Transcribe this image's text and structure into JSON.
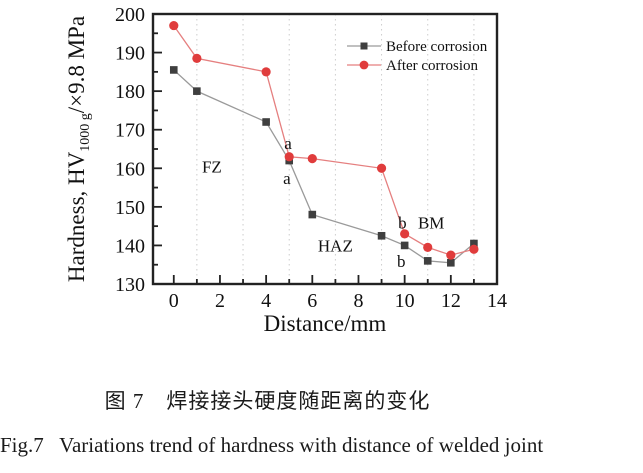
{
  "figure": {
    "caption_zh": "图 7　焊接接头硬度随距离的变化",
    "caption_en": "Fig.7   Variations trend of hardness with distance of welded joint"
  },
  "chart_data": {
    "type": "line",
    "xlabel": "Distance/mm",
    "ylabel": "Hardness, HV1000 g/×9.8 MPa",
    "ylabel_parts": {
      "prefix": "Hardness, HV",
      "subscript": "1000 g",
      "suffix": "/×9.8 MPa"
    },
    "xlim": [
      -0.9,
      14
    ],
    "ylim": [
      130,
      200
    ],
    "x_ticks_major": [
      0,
      2,
      4,
      6,
      8,
      10,
      12,
      14
    ],
    "x_ticks_minor": [
      1,
      3,
      5,
      7,
      9,
      11,
      13
    ],
    "y_ticks_major": [
      130,
      140,
      150,
      160,
      170,
      180,
      190,
      200
    ],
    "y_ticks_minor": [
      135,
      145,
      155,
      165,
      175,
      185,
      195
    ],
    "grid": {
      "vertical_dotted_at": [
        1,
        3,
        5,
        7,
        9,
        11,
        13
      ],
      "color": "#cccccc"
    },
    "legend_position": "upper-right",
    "series": [
      {
        "name": "Before corrosion",
        "marker": "square",
        "marker_color": "#3f3f3f",
        "line_color": "#9a9a9a",
        "x": [
          0,
          1,
          4,
          5,
          6,
          9,
          10,
          11,
          12,
          13
        ],
        "y": [
          185.5,
          180,
          172,
          162,
          148,
          142.5,
          140,
          136,
          135.5,
          140.5
        ]
      },
      {
        "name": "After corrosion",
        "marker": "circle",
        "marker_color": "#e03c3c",
        "line_color": "#e57f7f",
        "x": [
          0,
          1,
          4,
          5,
          6,
          9,
          10,
          11,
          12,
          13
        ],
        "y": [
          197,
          188.5,
          185,
          163,
          162.5,
          160,
          143,
          139.5,
          137.5,
          139
        ]
      }
    ],
    "annotations": [
      {
        "text": "FZ",
        "x": 1.65,
        "y": 160.5
      },
      {
        "text": "HAZ",
        "x": 7.0,
        "y": 140
      },
      {
        "text": "BM",
        "x": 11.15,
        "y": 146
      },
      {
        "text": "a",
        "x": 4.95,
        "y": 166.5
      },
      {
        "text": "a",
        "x": 4.9,
        "y": 157.5
      },
      {
        "text": "b",
        "x": 9.9,
        "y": 146
      },
      {
        "text": "b",
        "x": 9.85,
        "y": 136
      }
    ]
  }
}
